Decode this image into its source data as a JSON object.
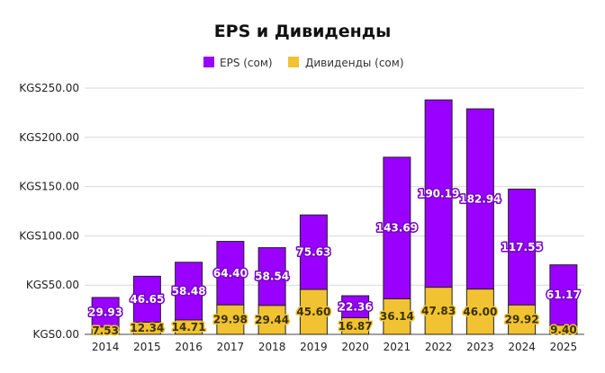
{
  "chart_data": {
    "type": "bar",
    "stacked": true,
    "title": "EPS и Дивиденды",
    "legend_position": "top",
    "grid": true,
    "ylim": [
      0,
      250
    ],
    "y_ticks": [
      0,
      50,
      100,
      150,
      200,
      250
    ],
    "y_tick_labels": [
      "KGS0.00",
      "KGS50.00",
      "KGS100.00",
      "KGS150.00",
      "KGS200.00",
      "KGS250.00"
    ],
    "categories": [
      "2014",
      "2015",
      "2016",
      "2017",
      "2018",
      "2019",
      "2020",
      "2021",
      "2022",
      "2023",
      "2024",
      "2025"
    ],
    "series": [
      {
        "name": "EPS (сом)",
        "color": "#9900ff",
        "values": [
          29.93,
          46.65,
          58.48,
          64.4,
          58.54,
          75.63,
          22.36,
          143.69,
          190.19,
          182.94,
          117.55,
          61.17
        ],
        "labels": [
          "29.93",
          "46.65",
          "58.48",
          "64.40",
          "58.54",
          "75.63",
          "22.36",
          "143.69",
          "190.19",
          "182.94",
          "117.55",
          "61.17"
        ]
      },
      {
        "name": "Дивиденды (сом)",
        "color": "#f1c232",
        "values": [
          7.53,
          12.34,
          14.71,
          29.98,
          29.44,
          45.6,
          16.87,
          36.14,
          47.83,
          46.0,
          29.92,
          9.4
        ],
        "labels": [
          "7.53",
          "12.34",
          "14.71",
          "29.98",
          "29.44",
          "45.60",
          "16.87",
          "36.14",
          "47.83",
          "46.00",
          "29.92",
          "9.40"
        ]
      }
    ]
  }
}
